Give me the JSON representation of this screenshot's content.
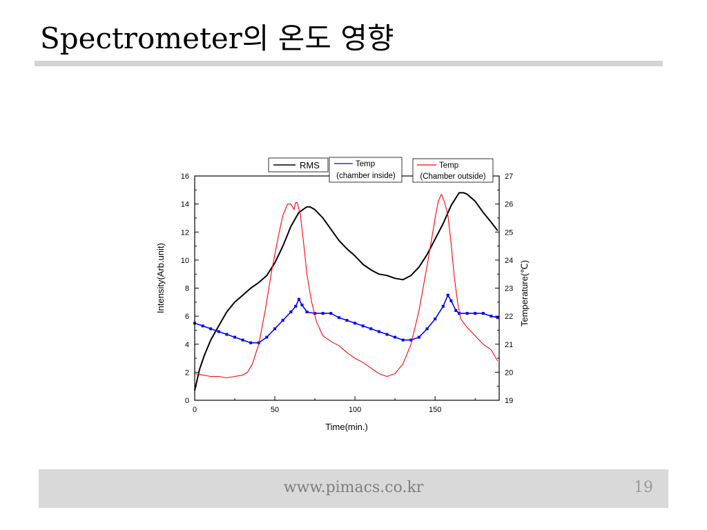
{
  "slide": {
    "title": "Spectrometer의 온도 영향",
    "footer_url": "www.pimacs.co.kr",
    "page_number": "19"
  },
  "colors": {
    "rms": "#000000",
    "temp_inside": "#0000ff",
    "temp_outside": "#ff0000",
    "rule": "#d4d4d4",
    "footer": "#d9d9d9"
  },
  "chart_data": {
    "type": "line",
    "xlabel": "Time(min.)",
    "ylabel_left": "Intensity(Arb.unit)",
    "ylabel_right": "Temperature(℃)",
    "xlim": [
      0,
      190
    ],
    "ylim_left": [
      0,
      16
    ],
    "ylim_right": [
      19,
      27
    ],
    "x_ticks": [
      "0",
      "50",
      "100",
      "150"
    ],
    "y_left_ticks": [
      "0",
      "2",
      "4",
      "6",
      "8",
      "10",
      "12",
      "14",
      "16"
    ],
    "y_right_ticks": [
      "19",
      "20",
      "21",
      "22",
      "23",
      "24",
      "25",
      "26",
      "27"
    ],
    "legend_position": "top",
    "series": [
      {
        "name": "RMS",
        "axis": "left",
        "color": "#000000",
        "x": [
          0,
          3,
          6,
          10,
          15,
          20,
          25,
          30,
          35,
          40,
          45,
          50,
          55,
          60,
          65,
          70,
          72,
          75,
          80,
          85,
          90,
          95,
          100,
          105,
          110,
          115,
          120,
          125,
          130,
          135,
          140,
          145,
          150,
          155,
          160,
          165,
          168,
          170,
          175,
          180,
          185,
          189
        ],
        "y": [
          0.7,
          2.2,
          3.2,
          4.3,
          5.3,
          6.3,
          7.0,
          7.5,
          8.0,
          8.4,
          8.9,
          9.8,
          11.0,
          12.4,
          13.4,
          13.8,
          13.8,
          13.6,
          13.0,
          12.2,
          11.4,
          10.8,
          10.3,
          9.7,
          9.3,
          9.0,
          8.9,
          8.7,
          8.6,
          8.9,
          9.5,
          10.4,
          11.5,
          12.6,
          13.9,
          14.8,
          14.8,
          14.7,
          14.2,
          13.4,
          12.7,
          12.1
        ]
      },
      {
        "name": "Temp\n(chamber inside)",
        "axis": "right",
        "color": "#0000ff",
        "x": [
          0,
          5,
          10,
          15,
          20,
          25,
          30,
          35,
          40,
          45,
          50,
          55,
          60,
          63,
          65,
          67,
          70,
          75,
          80,
          85,
          90,
          95,
          100,
          105,
          110,
          115,
          120,
          125,
          130,
          135,
          140,
          145,
          150,
          155,
          158,
          160,
          163,
          165,
          170,
          175,
          180,
          185,
          189
        ],
        "y": [
          21.75,
          21.65,
          21.55,
          21.45,
          21.35,
          21.25,
          21.15,
          21.05,
          21.05,
          21.25,
          21.55,
          21.85,
          22.15,
          22.35,
          22.6,
          22.4,
          22.15,
          22.1,
          22.1,
          22.1,
          21.95,
          21.85,
          21.75,
          21.65,
          21.55,
          21.45,
          21.35,
          21.25,
          21.15,
          21.15,
          21.25,
          21.55,
          21.9,
          22.35,
          22.75,
          22.55,
          22.2,
          22.1,
          22.1,
          22.1,
          22.1,
          22.0,
          21.95
        ]
      },
      {
        "name": "Temp\n(Chamber outside)",
        "axis": "right",
        "color": "#ff0000",
        "x": [
          0,
          5,
          10,
          15,
          20,
          25,
          30,
          33,
          36,
          40,
          44,
          48,
          52,
          55,
          58,
          60,
          62,
          63,
          64,
          66,
          68,
          70,
          73,
          76,
          80,
          85,
          90,
          95,
          100,
          105,
          110,
          115,
          120,
          125,
          130,
          135,
          140,
          145,
          148,
          150,
          152,
          154,
          156,
          158,
          160,
          162,
          164,
          166,
          170,
          175,
          180,
          185,
          189
        ],
        "y": [
          19.95,
          19.9,
          19.85,
          19.85,
          19.8,
          19.85,
          19.9,
          20.0,
          20.3,
          21.0,
          22.2,
          23.6,
          24.8,
          25.6,
          26.0,
          26.0,
          25.8,
          26.05,
          26.05,
          25.6,
          24.6,
          23.5,
          22.5,
          21.8,
          21.3,
          21.1,
          20.95,
          20.7,
          20.5,
          20.35,
          20.15,
          19.95,
          19.85,
          19.95,
          20.3,
          21.0,
          22.2,
          23.8,
          24.8,
          25.5,
          26.1,
          26.35,
          26.05,
          25.6,
          24.6,
          23.4,
          22.5,
          21.9,
          21.6,
          21.3,
          21.0,
          20.8,
          20.4
        ]
      }
    ]
  }
}
